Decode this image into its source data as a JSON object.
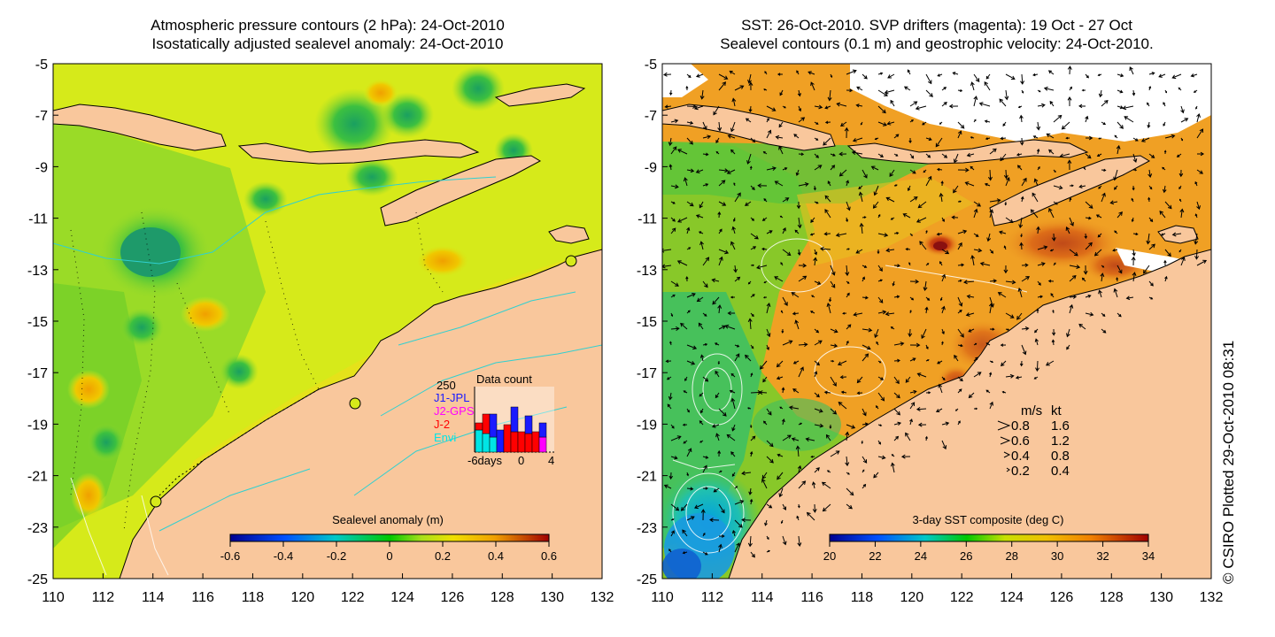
{
  "left_panel": {
    "title_line1": "Atmospheric pressure contours (2 hPa): 24-Oct-2010",
    "title_line2": "Isostatically adjusted sealevel anomaly: 24-Oct-2010",
    "colorbar": {
      "label": "Sealevel anomaly (m)",
      "ticks": [
        "-0.6",
        "-0.4",
        "-0.2",
        "0",
        "0.2",
        "0.4",
        "0.6"
      ]
    },
    "inset": {
      "title": "Data count",
      "ymax_label": "250",
      "legend": [
        {
          "label": "J1-JPL",
          "color": "#1a1aff"
        },
        {
          "label": "J2-GPS",
          "color": "#ff00ff"
        },
        {
          "label": "J-2",
          "color": "#ff0000"
        },
        {
          "label": "Envi",
          "color": "#00e5e5"
        }
      ],
      "x_labels": [
        "-6days",
        "0",
        "4"
      ]
    }
  },
  "right_panel": {
    "title_line1": "SST: 26-Oct-2010. SVP drifters (magenta): 19 Oct - 27 Oct",
    "title_line2": "Sealevel contours (0.1 m) and geostrophic velocity: 24-Oct-2010.",
    "colorbar": {
      "label": "3-day SST composite (deg C)",
      "ticks": [
        "20",
        "22",
        "24",
        "26",
        "28",
        "30",
        "32",
        "34"
      ]
    },
    "velocity_legend": {
      "header_ms": "m/s",
      "header_kt": "kt",
      "rows": [
        {
          "ms": "0.8",
          "kt": "1.6"
        },
        {
          "ms": "0.6",
          "kt": "1.2"
        },
        {
          "ms": "0.4",
          "kt": "0.8"
        },
        {
          "ms": "0.2",
          "kt": "0.4"
        }
      ]
    }
  },
  "axes": {
    "y_ticks": [
      "-5",
      "-7",
      "-9",
      "-11",
      "-13",
      "-15",
      "-17",
      "-19",
      "-21",
      "-23",
      "-25"
    ],
    "x_ticks": [
      "110",
      "112",
      "114",
      "116",
      "118",
      "120",
      "122",
      "124",
      "126",
      "128",
      "130",
      "132"
    ]
  },
  "credit": "© CSIRO Plotted 29-Oct-2010 08:31",
  "colors": {
    "land": "#f9c79c",
    "ssl_background": "#d6ea1a",
    "sst_background": "#f0a024"
  }
}
